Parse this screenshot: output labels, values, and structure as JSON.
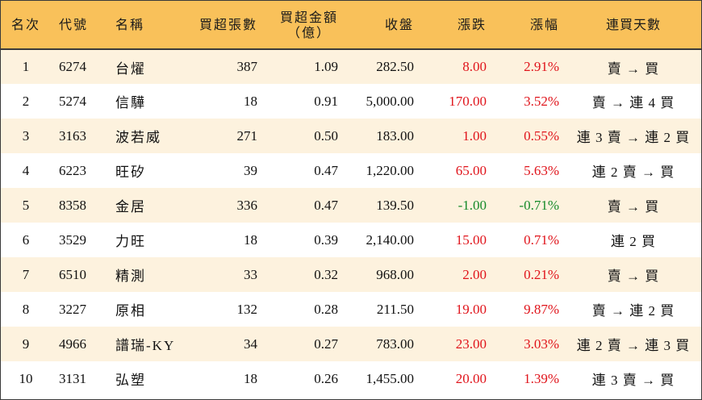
{
  "headers": {
    "rank": "名次",
    "code": "代號",
    "name": "名稱",
    "net_buy_lots": "買超張數",
    "net_buy_amount_line1": "買超金額",
    "net_buy_amount_line2": "（億）",
    "close": "收盤",
    "change": "漲跌",
    "change_pct": "漲幅",
    "streak": "連買天數"
  },
  "rows": [
    {
      "rank": "1",
      "code": "6274",
      "name": "台燿",
      "lots": "387",
      "amount": "1.09",
      "close": "282.50",
      "change": "8.00",
      "pct": "2.91%",
      "dir": "up",
      "streak": "賣 → 買"
    },
    {
      "rank": "2",
      "code": "5274",
      "name": "信驊",
      "lots": "18",
      "amount": "0.91",
      "close": "5,000.00",
      "change": "170.00",
      "pct": "3.52%",
      "dir": "up",
      "streak": "賣 → 連 4 買"
    },
    {
      "rank": "3",
      "code": "3163",
      "name": "波若威",
      "lots": "271",
      "amount": "0.50",
      "close": "183.00",
      "change": "1.00",
      "pct": "0.55%",
      "dir": "up",
      "streak": "連 3 賣 → 連 2 買"
    },
    {
      "rank": "4",
      "code": "6223",
      "name": "旺矽",
      "lots": "39",
      "amount": "0.47",
      "close": "1,220.00",
      "change": "65.00",
      "pct": "5.63%",
      "dir": "up",
      "streak": "連 2 賣 → 買"
    },
    {
      "rank": "5",
      "code": "8358",
      "name": "金居",
      "lots": "336",
      "amount": "0.47",
      "close": "139.50",
      "change": "-1.00",
      "pct": "-0.71%",
      "dir": "down",
      "streak": "賣 → 買"
    },
    {
      "rank": "6",
      "code": "3529",
      "name": "力旺",
      "lots": "18",
      "amount": "0.39",
      "close": "2,140.00",
      "change": "15.00",
      "pct": "0.71%",
      "dir": "up",
      "streak": "連 2 買"
    },
    {
      "rank": "7",
      "code": "6510",
      "name": "精測",
      "lots": "33",
      "amount": "0.32",
      "close": "968.00",
      "change": "2.00",
      "pct": "0.21%",
      "dir": "up",
      "streak": "賣 → 買"
    },
    {
      "rank": "8",
      "code": "3227",
      "name": "原相",
      "lots": "132",
      "amount": "0.28",
      "close": "211.50",
      "change": "19.00",
      "pct": "9.87%",
      "dir": "up",
      "streak": "賣 → 連 2 買"
    },
    {
      "rank": "9",
      "code": "4966",
      "name": "譜瑞-KY",
      "lots": "34",
      "amount": "0.27",
      "close": "783.00",
      "change": "23.00",
      "pct": "3.03%",
      "dir": "up",
      "streak": "連 2 賣 → 連 3 買"
    },
    {
      "rank": "10",
      "code": "3131",
      "name": "弘塑",
      "lots": "18",
      "amount": "0.26",
      "close": "1,455.00",
      "change": "20.00",
      "pct": "1.39%",
      "dir": "up",
      "streak": "連 3 賣 → 買"
    }
  ],
  "colors": {
    "header_bg": "#f9c15a",
    "odd_row_bg": "#fdf2de",
    "up": "#e0141b",
    "down": "#168a2a"
  }
}
